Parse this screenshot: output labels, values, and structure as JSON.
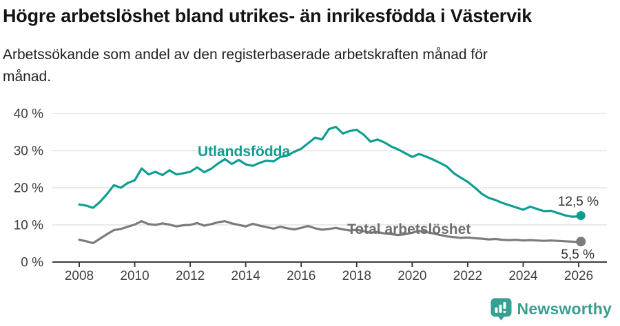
{
  "header": {
    "title": "Högre arbetslöshet bland utrikes- än inrikesfödda i Västervik",
    "subtitle": "Arbetssökande som andel av den registerbaserade arbetskraften månad för månad."
  },
  "colors": {
    "foreign_born_line": "#0f9d92",
    "total_line": "#7b7b7b",
    "total_label": "#6f6f6f",
    "grid": "#dcdcdc",
    "axis": "#3c3c3c",
    "tick_label": "#3f3f3f",
    "value_label": "#333333",
    "brand": "#3b9e8c",
    "background": "#ffffff"
  },
  "chart_data": {
    "type": "line",
    "title": "Högre arbetslöshet bland utrikes- än inrikesfödda i Västervik",
    "subtitle": "Arbetssökande som andel av den registerbaserade arbetskraften månad för månad.",
    "xlabel": "",
    "ylabel": "",
    "grid": "horizontal",
    "legend_position": "inline-labels",
    "xlim": [
      2007.9,
      2026.6
    ],
    "ylim": [
      0,
      40
    ],
    "x_tick_values": [
      2008,
      2010,
      2012,
      2014,
      2016,
      2018,
      2020,
      2022,
      2024,
      2026
    ],
    "x_tick_labels": [
      "2008",
      "2010",
      "2012",
      "2014",
      "2016",
      "2018",
      "2020",
      "2022",
      "2024",
      "2026"
    ],
    "y_tick_values": [
      0,
      10,
      20,
      30,
      40
    ],
    "y_tick_labels": [
      "0 %",
      "10 %",
      "20 %",
      "30 %",
      "40 %"
    ],
    "series": [
      {
        "name": "Utlandsfödda",
        "color": "#0f9d92",
        "end_label": "12,5 %",
        "end_value": 12.5,
        "x": [
          2008.0,
          2008.25,
          2008.5,
          2008.75,
          2009.0,
          2009.25,
          2009.5,
          2009.75,
          2010.0,
          2010.25,
          2010.5,
          2010.75,
          2011.0,
          2011.25,
          2011.5,
          2011.75,
          2012.0,
          2012.25,
          2012.5,
          2012.75,
          2013.0,
          2013.25,
          2013.5,
          2013.75,
          2014.0,
          2014.25,
          2014.5,
          2014.75,
          2015.0,
          2015.25,
          2015.5,
          2015.75,
          2016.0,
          2016.25,
          2016.5,
          2016.75,
          2017.0,
          2017.25,
          2017.5,
          2017.75,
          2018.0,
          2018.25,
          2018.5,
          2018.75,
          2019.0,
          2019.25,
          2019.5,
          2019.75,
          2020.0,
          2020.25,
          2020.5,
          2020.75,
          2021.0,
          2021.25,
          2021.5,
          2021.75,
          2022.0,
          2022.25,
          2022.5,
          2022.75,
          2023.0,
          2023.25,
          2023.5,
          2023.75,
          2024.0,
          2024.25,
          2024.5,
          2024.75,
          2025.0,
          2025.25,
          2025.5,
          2025.75,
          2026.0,
          2026.08
        ],
        "values": [
          15.5,
          15.2,
          14.6,
          16.2,
          18.3,
          20.7,
          20.0,
          21.3,
          22.0,
          25.2,
          23.6,
          24.3,
          23.4,
          24.7,
          23.6,
          23.9,
          24.3,
          25.5,
          24.2,
          25.1,
          26.5,
          27.7,
          26.4,
          27.5,
          26.3,
          25.9,
          26.7,
          27.3,
          27.1,
          28.3,
          28.7,
          29.7,
          30.5,
          32.0,
          33.5,
          33.0,
          35.8,
          36.4,
          34.6,
          35.3,
          35.6,
          34.3,
          32.4,
          33.0,
          32.2,
          31.1,
          30.3,
          29.3,
          28.3,
          29.1,
          28.4,
          27.6,
          26.7,
          25.7,
          23.9,
          22.7,
          21.6,
          20.1,
          18.4,
          17.3,
          16.7,
          15.9,
          15.3,
          14.7,
          14.1,
          14.9,
          14.3,
          13.7,
          13.8,
          13.2,
          12.6,
          12.2,
          12.3,
          12.5
        ]
      },
      {
        "name": "Total arbetslöshet",
        "color": "#7b7b7b",
        "end_label": "5,5 %",
        "end_value": 5.5,
        "x": [
          2008.0,
          2008.25,
          2008.5,
          2008.75,
          2009.0,
          2009.25,
          2009.5,
          2009.75,
          2010.0,
          2010.25,
          2010.5,
          2010.75,
          2011.0,
          2011.25,
          2011.5,
          2011.75,
          2012.0,
          2012.25,
          2012.5,
          2012.75,
          2013.0,
          2013.25,
          2013.5,
          2013.75,
          2014.0,
          2014.25,
          2014.5,
          2014.75,
          2015.0,
          2015.25,
          2015.5,
          2015.75,
          2016.0,
          2016.25,
          2016.5,
          2016.75,
          2017.0,
          2017.25,
          2017.5,
          2017.75,
          2018.0,
          2018.25,
          2018.5,
          2018.75,
          2019.0,
          2019.25,
          2019.5,
          2019.75,
          2020.0,
          2020.25,
          2020.5,
          2020.75,
          2021.0,
          2021.25,
          2021.5,
          2021.75,
          2022.0,
          2022.25,
          2022.5,
          2022.75,
          2023.0,
          2023.25,
          2023.5,
          2023.75,
          2024.0,
          2024.25,
          2024.5,
          2024.75,
          2025.0,
          2025.25,
          2025.5,
          2025.75,
          2026.0,
          2026.08
        ],
        "values": [
          6.0,
          5.6,
          5.1,
          6.3,
          7.5,
          8.6,
          8.9,
          9.5,
          10.1,
          11.0,
          10.2,
          10.0,
          10.4,
          10.1,
          9.6,
          9.9,
          10.0,
          10.5,
          9.8,
          10.2,
          10.7,
          11.0,
          10.4,
          10.0,
          9.6,
          10.3,
          9.8,
          9.4,
          9.0,
          9.5,
          9.1,
          8.8,
          9.2,
          9.7,
          9.1,
          8.7,
          8.9,
          9.2,
          8.8,
          8.5,
          8.7,
          8.3,
          7.9,
          8.1,
          7.7,
          7.5,
          7.3,
          7.5,
          7.9,
          8.4,
          8.1,
          7.7,
          7.3,
          6.9,
          6.7,
          6.5,
          6.6,
          6.4,
          6.3,
          6.1,
          6.2,
          6.0,
          5.9,
          6.0,
          5.8,
          5.9,
          5.8,
          5.7,
          5.8,
          5.7,
          5.6,
          5.5,
          5.4,
          5.5
        ]
      }
    ]
  },
  "annotations": {
    "foreign_series_label": "Utlandsfödda",
    "total_series_label": "Total arbetslöshet",
    "foreign_end_value": "12,5 %",
    "total_end_value": "5,5 %"
  },
  "footer": {
    "brand_name": "Newsworthy"
  }
}
